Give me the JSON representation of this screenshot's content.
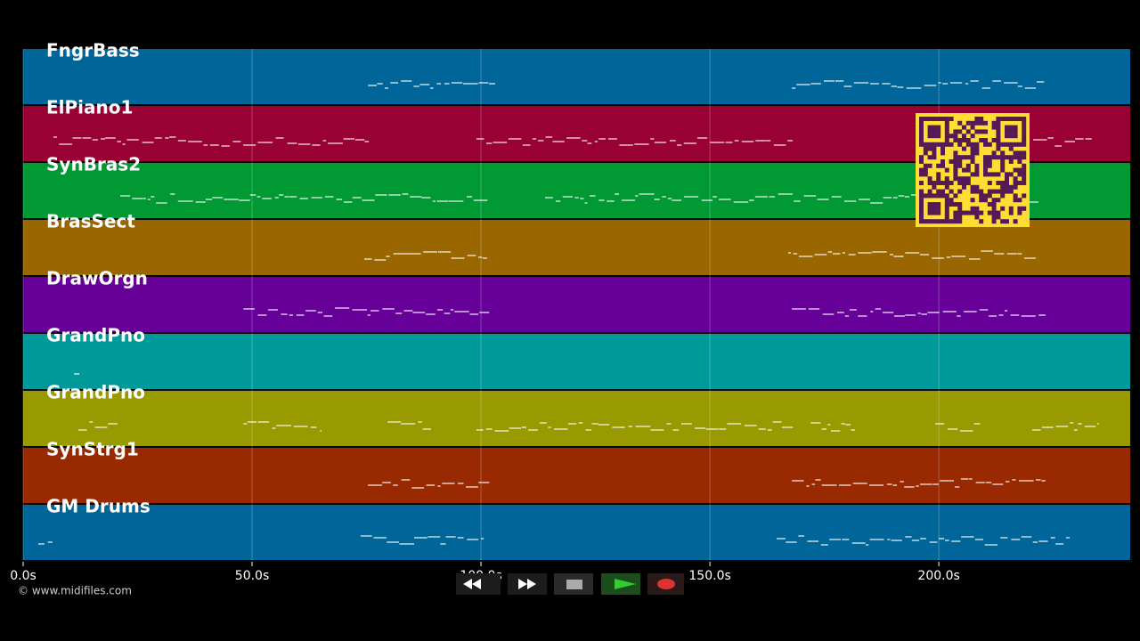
{
  "tracks": [
    {
      "name": "FngrBass",
      "color": "#006699",
      "segments": [
        [
          75.3,
          103.1
        ],
        [
          167.9,
          223.0
        ]
      ]
    },
    {
      "name": "ElPiano1",
      "color": "#990033",
      "segments": [
        [
          6.6,
          75.5
        ],
        [
          99.0,
          168.1
        ],
        [
          220.6,
          233.7
        ]
      ]
    },
    {
      "name": "SynBras2",
      "color": "#009933",
      "segments": [
        [
          21.2,
          102.1
        ],
        [
          114.0,
          222.0
        ]
      ]
    },
    {
      "name": "BrasSect",
      "color": "#996600",
      "segments": [
        [
          74.5,
          101.6
        ],
        [
          167.1,
          221.6
        ]
      ]
    },
    {
      "name": "DrawOrgn",
      "color": "#660099",
      "segments": [
        [
          48.1,
          101.8
        ],
        [
          167.9,
          223.3
        ]
      ]
    },
    {
      "name": "GrandPno",
      "color": "#009999",
      "segments": [
        [
          11.1,
          12.3
        ]
      ]
    },
    {
      "name": "GrandPno",
      "color": "#999900",
      "segments": [
        [
          12.1,
          20.6
        ],
        [
          48.1,
          65.2
        ],
        [
          79.6,
          89.1
        ],
        [
          99.0,
          168.1
        ],
        [
          172.0,
          181.7
        ],
        [
          199.2,
          209.0
        ],
        [
          220.4,
          235.0
        ]
      ]
    },
    {
      "name": "SynStrg1",
      "color": "#992900",
      "segments": [
        [
          75.3,
          101.8
        ],
        [
          167.9,
          223.3
        ]
      ]
    },
    {
      "name": "GM Drums",
      "color": "#006699",
      "segments": [
        [
          3.3,
          6.4
        ],
        [
          73.7,
          100.6
        ],
        [
          164.6,
          228.6
        ]
      ]
    }
  ],
  "time_axis": {
    "range": [
      0,
      241.8
    ],
    "ticks": [
      {
        "value": 0,
        "label": "0.0s"
      },
      {
        "value": 50,
        "label": "50.0s"
      },
      {
        "value": 100,
        "label": "100.0s"
      },
      {
        "value": 150,
        "label": "150.0s"
      },
      {
        "value": 200,
        "label": "200.0s"
      }
    ]
  },
  "footer": {
    "copyright": "© www.midifiles.com"
  }
}
